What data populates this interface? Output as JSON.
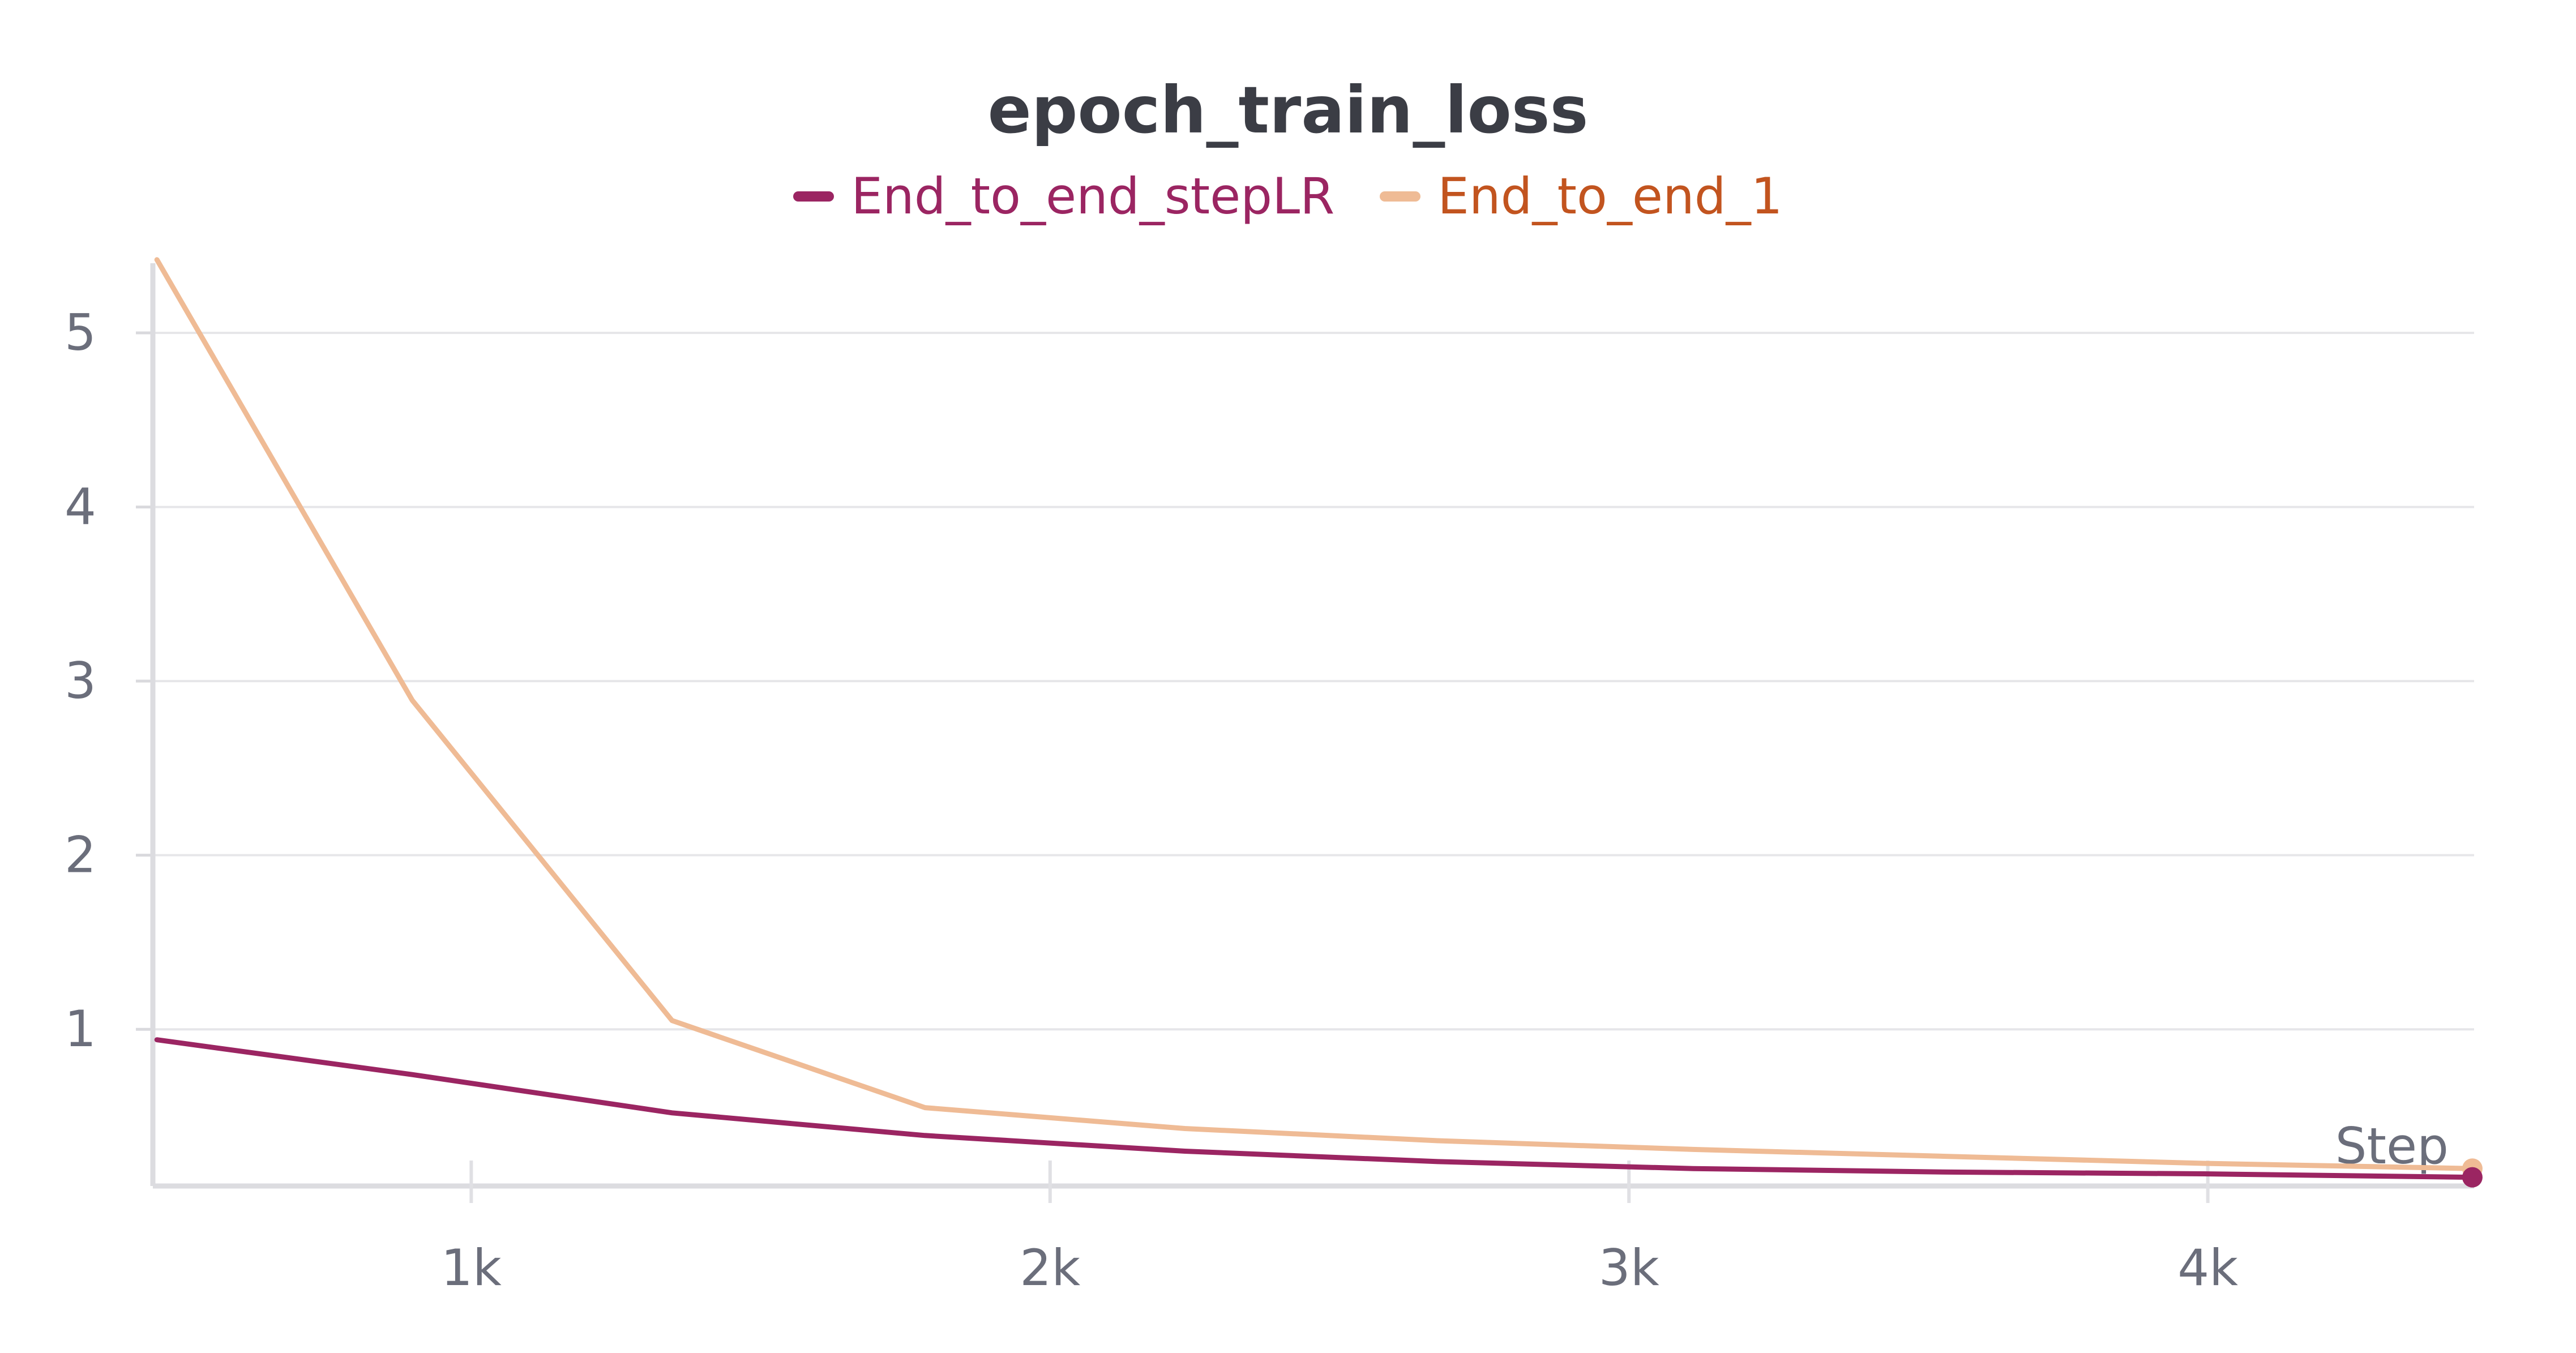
{
  "chart_data": {
    "type": "line",
    "title": "epoch_train_loss",
    "xlabel": "Step",
    "ylabel": "",
    "xlim": [
      450,
      4460
    ],
    "ylim": [
      0.1,
      5.4
    ],
    "x_ticks": [
      1000,
      2000,
      3000,
      4000
    ],
    "x_tick_labels": [
      "1k",
      "2k",
      "3k",
      "4k"
    ],
    "y_ticks": [
      1,
      2,
      3,
      4,
      5
    ],
    "y_tick_labels": [
      "1",
      "2",
      "3",
      "4",
      "5"
    ],
    "grid": true,
    "legend_position": "top-center",
    "series": [
      {
        "name": "End_to_end_stepLR",
        "color": "#9b2562",
        "label_color": "#9b2562",
        "x": [
          457,
          898,
          1347,
          1784,
          2233,
          2670,
          3111,
          3552,
          3993,
          4457
        ],
        "y": [
          0.94,
          0.74,
          0.52,
          0.39,
          0.3,
          0.24,
          0.2,
          0.18,
          0.17,
          0.15
        ]
      },
      {
        "name": "End_to_end_1",
        "color": "#efbb95",
        "label_color": "#c2541f",
        "x": [
          457,
          898,
          1347,
          1784,
          2233,
          2670,
          3111,
          3552,
          3993,
          4457
        ],
        "y": [
          5.42,
          2.89,
          1.05,
          0.55,
          0.43,
          0.36,
          0.31,
          0.27,
          0.23,
          0.2
        ]
      }
    ]
  }
}
